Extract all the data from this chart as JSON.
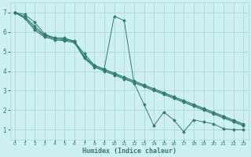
{
  "xlabel": "Humidex (Indice chaleur)",
  "bg_color": "#cff0f0",
  "grid_color": "#a8d8d8",
  "line_color": "#2e7d72",
  "xlim": [
    -0.5,
    23.5
  ],
  "ylim": [
    0.5,
    7.5
  ],
  "xticks": [
    0,
    1,
    2,
    3,
    4,
    5,
    6,
    7,
    8,
    9,
    10,
    11,
    12,
    13,
    14,
    15,
    16,
    17,
    18,
    19,
    20,
    21,
    22,
    23
  ],
  "yticks": [
    1,
    2,
    3,
    4,
    5,
    6,
    7
  ],
  "line1_x": [
    0,
    1,
    2,
    3,
    4,
    5,
    6,
    7,
    8,
    9,
    10,
    11,
    12,
    13,
    14,
    15,
    16,
    17,
    18,
    19,
    20,
    21,
    22,
    23
  ],
  "line1_y": [
    7.0,
    6.9,
    6.5,
    5.9,
    5.7,
    5.7,
    5.5,
    4.9,
    4.3,
    4.1,
    6.8,
    6.6,
    3.4,
    2.3,
    1.2,
    1.9,
    1.5,
    0.9,
    1.5,
    1.4,
    1.3,
    1.05,
    1.0,
    1.0
  ],
  "line2_x": [
    0,
    1,
    2,
    3,
    4,
    5,
    6,
    7,
    8,
    9,
    10,
    11,
    12,
    13,
    14,
    15,
    16,
    17,
    18,
    19,
    20,
    21,
    22,
    23
  ],
  "line2_y": [
    7.0,
    6.8,
    6.3,
    5.85,
    5.7,
    5.65,
    5.55,
    4.75,
    4.3,
    4.1,
    3.9,
    3.7,
    3.5,
    3.3,
    3.1,
    2.9,
    2.7,
    2.5,
    2.3,
    2.1,
    1.9,
    1.7,
    1.5,
    1.3
  ],
  "line3_x": [
    0,
    1,
    2,
    3,
    4,
    5,
    6,
    7,
    8,
    9,
    10,
    11,
    12,
    13,
    14,
    15,
    16,
    17,
    18,
    19,
    20,
    21,
    22,
    23
  ],
  "line3_y": [
    7.0,
    6.75,
    6.2,
    5.8,
    5.65,
    5.6,
    5.5,
    4.7,
    4.25,
    4.05,
    3.85,
    3.65,
    3.45,
    3.25,
    3.05,
    2.85,
    2.65,
    2.45,
    2.25,
    2.05,
    1.85,
    1.65,
    1.45,
    1.25
  ],
  "line4_x": [
    0,
    1,
    2,
    3,
    4,
    5,
    6,
    7,
    8,
    9,
    10,
    11,
    12,
    13,
    14,
    15,
    16,
    17,
    18,
    19,
    20,
    21,
    22,
    23
  ],
  "line4_y": [
    7.0,
    6.7,
    6.1,
    5.75,
    5.6,
    5.55,
    5.45,
    4.65,
    4.2,
    4.0,
    3.8,
    3.6,
    3.4,
    3.2,
    3.0,
    2.8,
    2.6,
    2.4,
    2.2,
    2.0,
    1.8,
    1.6,
    1.4,
    1.2
  ]
}
